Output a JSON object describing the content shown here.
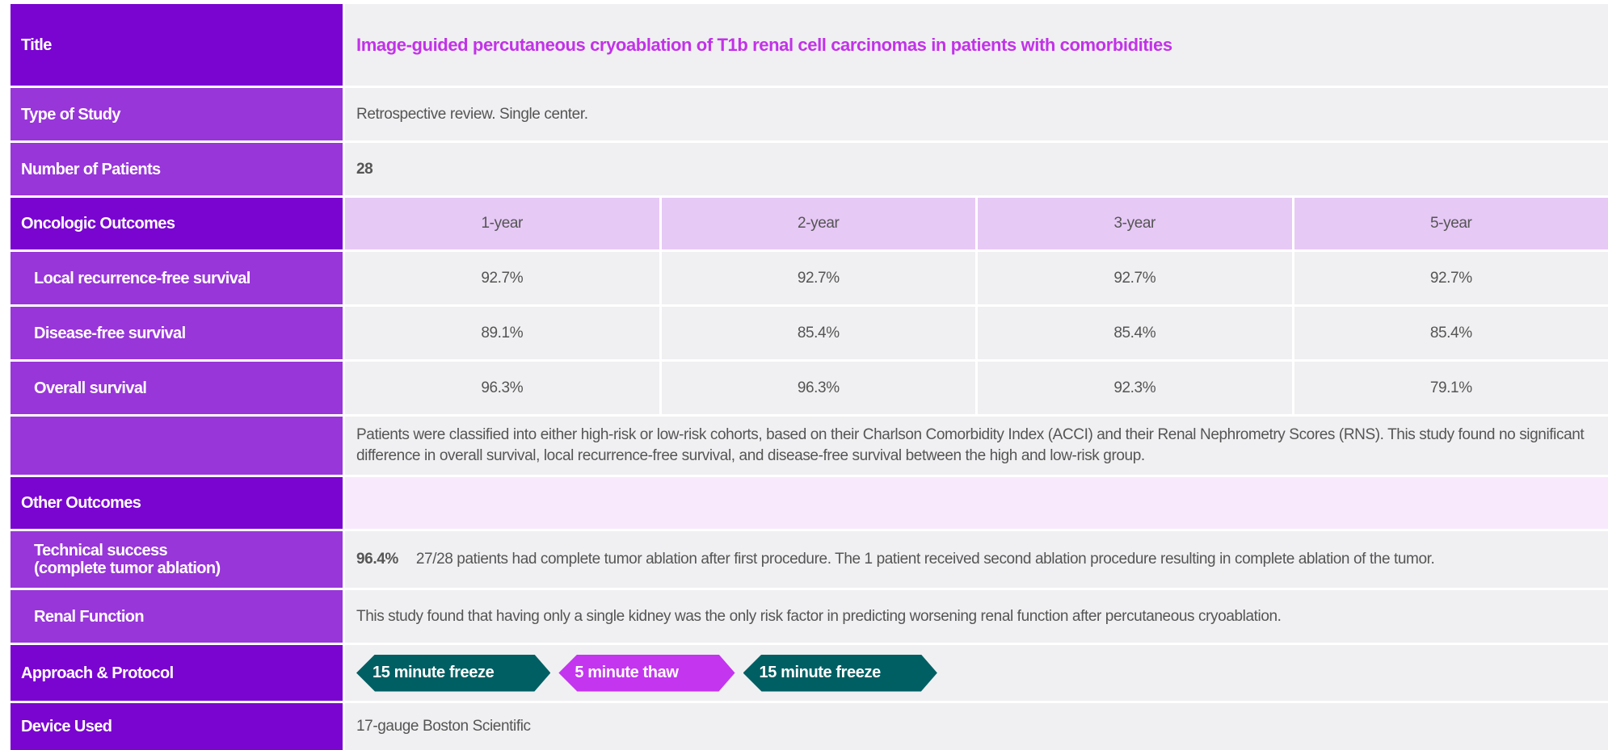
{
  "study": {
    "title": {
      "label": "Title",
      "text": "Image-guided percutaneous cryoablation of T1b renal cell carcinomas in patients with comorbidities"
    },
    "type_of_study": {
      "label": "Type of Study",
      "text": "Retrospective review. Single center."
    },
    "number_of_patients": {
      "label": "Number of Patients",
      "text": "28"
    },
    "oncologic_outcomes": {
      "label": "Oncologic Outcomes",
      "years": [
        "1-year",
        "2-year",
        "3-year",
        "5-year"
      ],
      "rows": [
        {
          "label": "Local recurrence-free survival",
          "values": [
            "92.7%",
            "92.7%",
            "92.7%",
            "92.7%"
          ]
        },
        {
          "label": "Disease-free survival",
          "values": [
            "89.1%",
            "85.4%",
            "85.4%",
            "85.4%"
          ]
        },
        {
          "label": "Overall survival",
          "values": [
            "96.3%",
            "96.3%",
            "92.3%",
            "79.1%"
          ]
        }
      ],
      "note": "Patients were classified into either high-risk or low-risk cohorts, based on their Charlson Comorbidity Index (ACCI) and their Renal Nephrometry Scores (RNS). This study found no significant difference in overall survival, local recurrence-free survival, and disease-free survival between the high and low-risk group."
    },
    "other_outcomes": {
      "label": "Other Outcomes",
      "technical_success": {
        "label": "Technical success\n(complete tumor ablation)",
        "value": "96.4%",
        "text": "27/28 patients had complete tumor ablation after first procedure. The 1 patient received second ablation procedure resulting in complete ablation of the tumor."
      },
      "renal_function": {
        "label": "Renal Function",
        "text": "This study found that having only a single kidney was the only risk factor in predicting worsening renal function after percutaneous cryoablation."
      }
    },
    "approach": {
      "label": "Approach & Protocol",
      "steps": [
        "15 minute freeze",
        "5 minute thaw",
        "15 minute freeze"
      ]
    },
    "device": {
      "label": "Device Used",
      "text": "17-gauge Boston Scientific"
    }
  }
}
